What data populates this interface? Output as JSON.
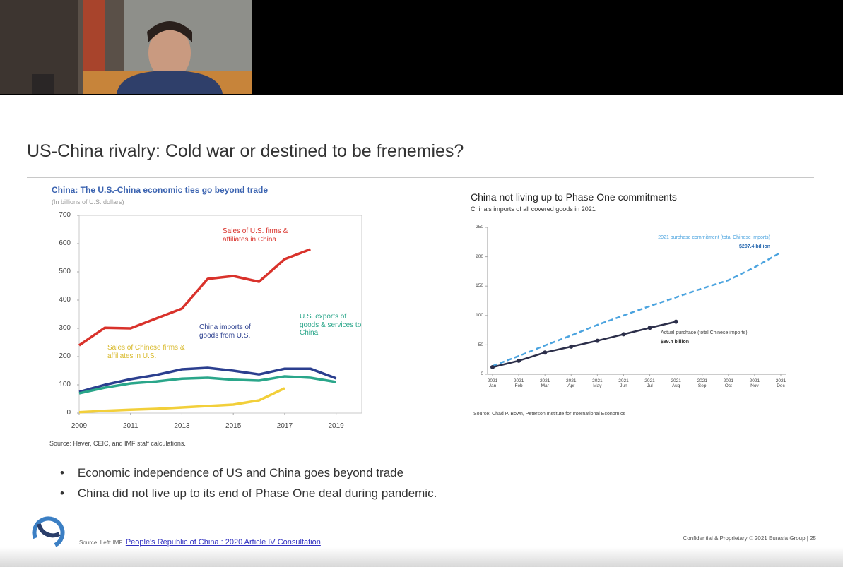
{
  "slide": {
    "title": "US-China rivalry: Cold war or destined to be frenemies?",
    "bullets": [
      "Economic independence of US and China goes beyond trade",
      "China did not live up to its end of Phase One deal during pandemic."
    ],
    "footer": {
      "source_prefix": "Source: Left: IMF",
      "source_link": "People's Republic of China : 2020 Article IV Consultation",
      "confidential": "Confidential & Proprietary © 2021 Eurasia Group | 25"
    }
  },
  "chart_data": [
    {
      "type": "line",
      "title": "China: The U.S.-China economic ties go beyond trade",
      "subtitle": "(In billions of U.S. dollars)",
      "source": "Source: Haver, CEIC, and IMF staff calculations.",
      "x": [
        2009,
        2010,
        2011,
        2012,
        2013,
        2014,
        2015,
        2016,
        2017,
        2018,
        2019
      ],
      "xlim": [
        2009,
        2020
      ],
      "xticks": [
        2009,
        2011,
        2013,
        2015,
        2017,
        2019
      ],
      "ylim": [
        0,
        700
      ],
      "yticks": [
        0,
        100,
        200,
        300,
        400,
        500,
        600,
        700
      ],
      "series": [
        {
          "name": "Sales of U.S. firms & affiliates in China",
          "color": "#d9322b",
          "values": [
            240,
            302,
            300,
            335,
            370,
            475,
            485,
            465,
            545,
            580,
            null
          ]
        },
        {
          "name": "China imports of goods from U.S.",
          "color": "#2b3f8f",
          "values": [
            75,
            100,
            120,
            135,
            155,
            160,
            150,
            137,
            157,
            157,
            123
          ]
        },
        {
          "name": "U.S. exports of goods & services to China",
          "color": "#2aa68a",
          "values": [
            70,
            90,
            105,
            112,
            122,
            125,
            118,
            115,
            130,
            125,
            110
          ]
        },
        {
          "name": "Sales of Chinese firms & affiliates in U.S.",
          "color": "#f2cf3a",
          "values": [
            3,
            8,
            12,
            15,
            20,
            25,
            30,
            45,
            88,
            null,
            null
          ]
        }
      ]
    },
    {
      "type": "line",
      "title": "China not living up to Phase One commitments",
      "subtitle": "China's imports of all covered goods in 2021",
      "source": "Source: Chad P. Bown, Peterson Institute for International Economics",
      "categories": [
        "2021\nJan",
        "2021\nFeb",
        "2021\nMar",
        "2021\nApr",
        "2021\nMay",
        "2021\nJun",
        "2021\nJul",
        "2021\nAug",
        "2021\nSep",
        "2021\nOct",
        "2021\nNov",
        "2021\nDec"
      ],
      "ylim": [
        0,
        250
      ],
      "yticks": [
        0,
        50,
        100,
        150,
        200,
        250
      ],
      "series": [
        {
          "name": "2021 purchase commitment (total Chinese imports)",
          "color": "#4aa3df",
          "style": "dashed",
          "values": [
            14,
            31,
            49,
            66,
            84,
            100,
            116,
            131,
            146,
            160,
            182,
            207.4
          ],
          "value_labels": [
            null,
            null,
            null,
            null,
            null,
            null,
            null,
            null,
            null,
            null,
            null,
            "$207.4 billion"
          ]
        },
        {
          "name": "Actual purchase (total Chinese imports)",
          "color": "#2c2f4a",
          "marker": true,
          "values": [
            12,
            23,
            37,
            47,
            57,
            68,
            79,
            89.4,
            null,
            null,
            null,
            null
          ],
          "value_labels": [
            null,
            null,
            null,
            null,
            null,
            null,
            null,
            "$89.4 billion",
            null,
            null,
            null,
            null
          ]
        }
      ]
    }
  ]
}
